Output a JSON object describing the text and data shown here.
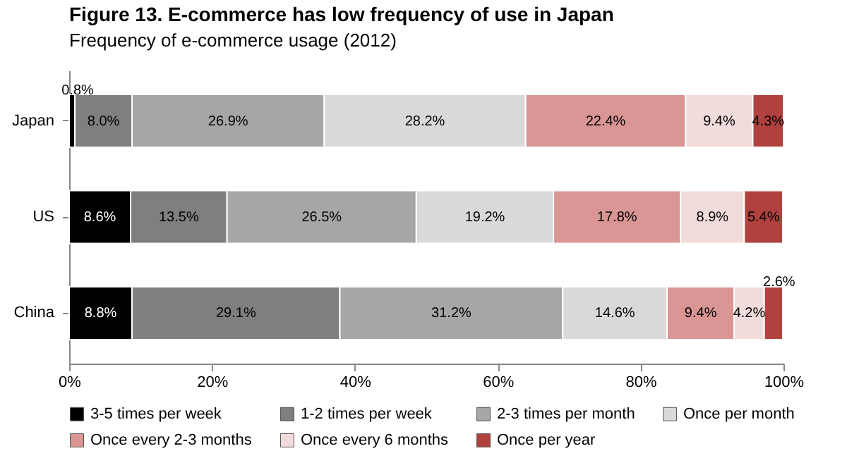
{
  "chart_data": {
    "type": "bar",
    "orientation": "horizontal",
    "stacked": true,
    "title": "Figure 13. E-commerce has low frequency of use in Japan",
    "subtitle": "Frequency of e-commerce usage (2012)",
    "categories": [
      "Japan",
      "US",
      "China"
    ],
    "series": [
      {
        "name": "3-5 times per week",
        "color": "#000000",
        "values": [
          0.8,
          8.6,
          8.8
        ],
        "value_labels": [
          "0.8%",
          "8.6%",
          "8.8%"
        ]
      },
      {
        "name": "1-2 times per week",
        "color": "#7f7f7f",
        "values": [
          8.0,
          13.5,
          29.1
        ],
        "value_labels": [
          "8.0%",
          "13.5%",
          "29.1%"
        ]
      },
      {
        "name": "2-3 times per month",
        "color": "#a6a6a6",
        "values": [
          26.9,
          26.5,
          31.2
        ],
        "value_labels": [
          "26.9%",
          "26.5%",
          "31.2%"
        ]
      },
      {
        "name": "Once per month",
        "color": "#d9d9d9",
        "values": [
          28.2,
          19.2,
          14.6
        ],
        "value_labels": [
          "28.2%",
          "19.2%",
          "14.6%"
        ]
      },
      {
        "name": "Once every 2-3 months",
        "color": "#d99694",
        "values": [
          22.4,
          17.8,
          9.4
        ],
        "value_labels": [
          "22.4%",
          "17.8%",
          "9.4%"
        ]
      },
      {
        "name": "Once every 6 months",
        "color": "#f2dcdb",
        "values": [
          9.4,
          8.9,
          4.2
        ],
        "value_labels": [
          "9.4%",
          "8.9%",
          "4.2%"
        ]
      },
      {
        "name": "Once per year",
        "color": "#b0413e",
        "values": [
          4.3,
          5.4,
          2.6
        ],
        "value_labels": [
          "4.3%",
          "5.4%",
          "2.6%"
        ]
      }
    ],
    "xlim": [
      0,
      100
    ],
    "xticks": [
      {
        "value": 0,
        "label": "0%"
      },
      {
        "value": 20,
        "label": "20%"
      },
      {
        "value": 40,
        "label": "40%"
      },
      {
        "value": 60,
        "label": "60%"
      },
      {
        "value": 80,
        "label": "80%"
      },
      {
        "value": 100,
        "label": "100%"
      }
    ],
    "grid": false,
    "legend": "bottom"
  }
}
